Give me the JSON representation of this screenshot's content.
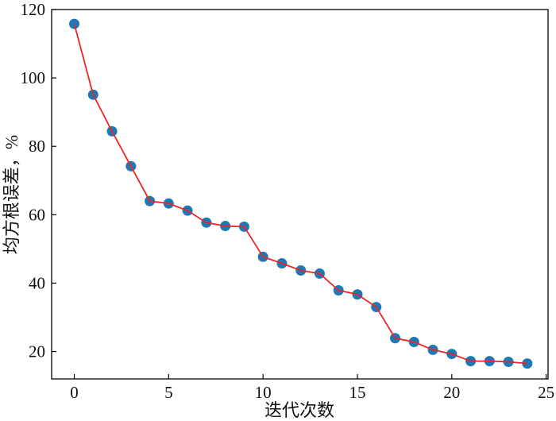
{
  "chart_data": {
    "type": "line",
    "title": "",
    "xlabel": "迭代次数",
    "ylabel": "均方根误差，%",
    "xlim": [
      -1.2,
      25.1
    ],
    "ylim": [
      12,
      120
    ],
    "xticks": [
      0,
      5,
      10,
      15,
      20,
      25
    ],
    "yticks": [
      20,
      40,
      60,
      80,
      100,
      120
    ],
    "grid": false,
    "legend": "none",
    "x": [
      0,
      1,
      2,
      3,
      4,
      5,
      6,
      7,
      8,
      9,
      10,
      11,
      12,
      13,
      14,
      15,
      16,
      17,
      18,
      19,
      20,
      21,
      22,
      23,
      24
    ],
    "series": [
      {
        "values": [
          115.8,
          95.1,
          84.4,
          74.2,
          64.0,
          63.3,
          61.2,
          57.7,
          56.7,
          56.5,
          47.7,
          45.8,
          43.7,
          42.8,
          37.9,
          36.7,
          33.0,
          23.9,
          22.8,
          20.5,
          19.3,
          17.2,
          17.2,
          17.0,
          16.5
        ],
        "line_color": "#e8262a",
        "marker_color": "#1f77b4"
      }
    ]
  }
}
